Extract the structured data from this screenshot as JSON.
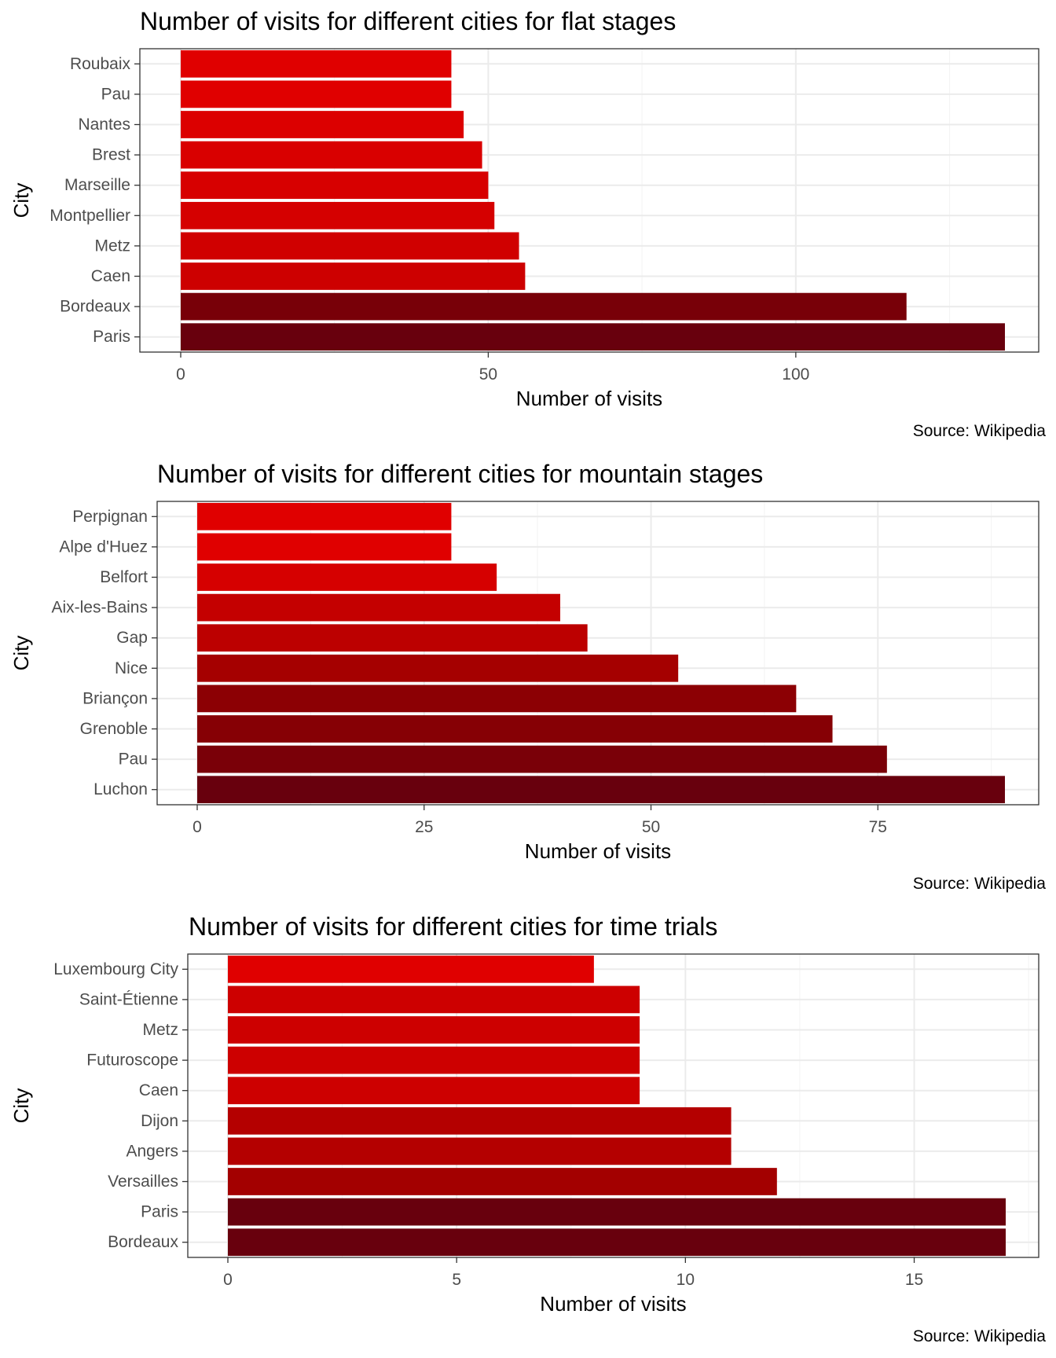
{
  "chart_data": [
    {
      "type": "bar",
      "orientation": "horizontal",
      "title": "Number of visits for different cities for flat stages",
      "xlabel": "Number of visits",
      "ylabel": "City",
      "caption": "Source: Wikipedia",
      "categories": [
        "Roubaix",
        "Pau",
        "Nantes",
        "Brest",
        "Marseille",
        "Montpellier",
        "Metz",
        "Caen",
        "Bordeaux",
        "Paris"
      ],
      "values": [
        44,
        44,
        46,
        49,
        50,
        51,
        55,
        56,
        118,
        134
      ],
      "xlim": [
        0,
        134
      ],
      "xticks": [
        0,
        50,
        100
      ],
      "grid": true,
      "colors": [
        "#e00000",
        "#e00000",
        "#dc0000",
        "#d90000",
        "#d70000",
        "#d50000",
        "#d00000",
        "#cd0000",
        "#780008",
        "#68000d"
      ]
    },
    {
      "type": "bar",
      "orientation": "horizontal",
      "title": "Number of visits for different cities for mountain stages",
      "xlabel": "Number of visits",
      "ylabel": "City",
      "caption": "Source: Wikipedia",
      "categories": [
        "Perpignan",
        "Alpe d'Huez",
        "Belfort",
        "Aix-les-Bains",
        "Gap",
        "Nice",
        "Briançon",
        "Grenoble",
        "Pau",
        "Luchon"
      ],
      "values": [
        28,
        28,
        33,
        40,
        43,
        53,
        66,
        70,
        76,
        89
      ],
      "xlim": [
        0,
        89
      ],
      "xticks": [
        0,
        25,
        50,
        75
      ],
      "grid": true,
      "colors": [
        "#e00000",
        "#e00000",
        "#d60000",
        "#c40000",
        "#bc0000",
        "#a50000",
        "#8c0004",
        "#860005",
        "#7a0008",
        "#68000d"
      ]
    },
    {
      "type": "bar",
      "orientation": "horizontal",
      "title": "Number of visits for different cities for time trials",
      "xlabel": "Number of visits",
      "ylabel": "City",
      "caption": "Source: Wikipedia",
      "categories": [
        "Luxembourg City",
        "Saint-Étienne",
        "Metz",
        "Futuroscope",
        "Caen",
        "Dijon",
        "Angers",
        "Versailles",
        "Paris",
        "Bordeaux"
      ],
      "values": [
        8,
        9,
        9,
        9,
        9,
        11,
        11,
        12,
        17,
        17
      ],
      "xlim": [
        0,
        17
      ],
      "xticks": [
        0,
        5,
        10,
        15
      ],
      "grid": true,
      "colors": [
        "#e00000",
        "#cd0000",
        "#cd0000",
        "#cd0000",
        "#cd0000",
        "#b40000",
        "#b40000",
        "#a30000",
        "#68000d",
        "#68000d"
      ]
    }
  ]
}
